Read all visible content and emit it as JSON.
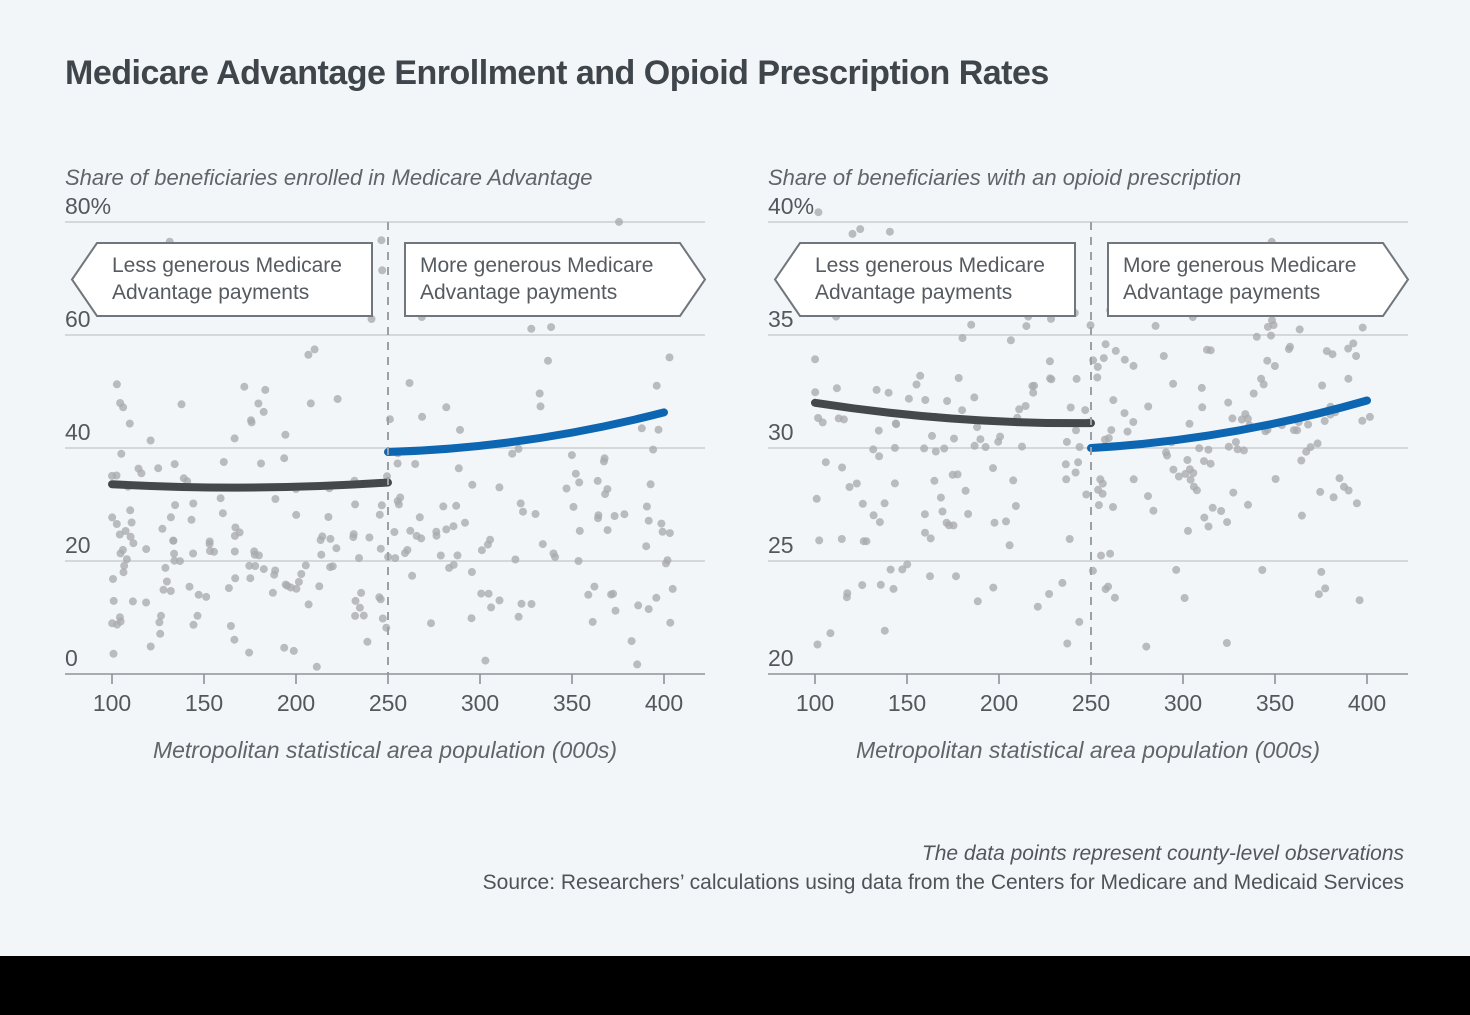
{
  "page": {
    "title": "Medicare Advantage Enrollment and Opioid Prescription Rates",
    "footnote_italic": "The data points represent county-level observations",
    "source_line": "Source: Researchers’ calculations using data from the Centers for Medicare and Medicaid Services",
    "colors": {
      "background": "#f3f6f9",
      "bottom_bar": "#000000",
      "accent_blue": "#0d66b1",
      "fit_dark": "#45484b",
      "dot_gray": "#a9abad",
      "gridline": "#c9cdd1",
      "axis": "#8e9397",
      "cutoff_dash": "#9aa0a6"
    }
  },
  "chart_data": [
    {
      "type": "scatter",
      "subtitle": "Share of beneficiaries enrolled in Medicare Advantage",
      "x_axis": {
        "label": "Metropolitan statistical area population (000s)",
        "ticks": [
          100,
          150,
          200,
          250,
          300,
          350,
          400
        ],
        "range": [
          100,
          400
        ]
      },
      "y_axis": {
        "tick_labels": [
          "80%",
          "60",
          "40",
          "20",
          "0"
        ],
        "tick_values": [
          80,
          60,
          40,
          20,
          0
        ],
        "range": [
          0,
          80
        ],
        "grid": true
      },
      "cutoff_x": 250,
      "annotations": {
        "less": [
          "Less generous Medicare",
          "Advantage payments"
        ],
        "more": [
          "More generous Medicare",
          "Advantage payments"
        ]
      },
      "fit_below": {
        "x": [
          100,
          175,
          250
        ],
        "y": [
          33.6,
          33.0,
          33.9
        ],
        "color": "#45484b"
      },
      "fit_above": {
        "x": [
          250,
          325,
          400
        ],
        "y": [
          39.3,
          41.4,
          46.3
        ],
        "color": "#0d66b1"
      },
      "scatter": {
        "seed": 42,
        "count": 270,
        "x_range": [
          100,
          406
        ],
        "x_pow": 1.4,
        "normal": {
          "mean": 24,
          "sd": 12
        },
        "mix_uniform": {
          "p": 0.13,
          "range": [
            30,
            83
          ]
        },
        "clip": [
          0.5,
          83
        ]
      }
    },
    {
      "type": "scatter",
      "subtitle": "Share of beneficiaries with an opioid prescription",
      "x_axis": {
        "label": "Metropolitan statistical area population (000s)",
        "ticks": [
          100,
          150,
          200,
          250,
          300,
          350,
          400
        ],
        "range": [
          100,
          400
        ]
      },
      "y_axis": {
        "tick_labels": [
          "40%",
          "35",
          "30",
          "25",
          "20"
        ],
        "tick_values": [
          40,
          35,
          30,
          25,
          20
        ],
        "range": [
          20,
          40
        ],
        "grid": true
      },
      "cutoff_x": 250,
      "annotations": {
        "less": [
          "Less generous Medicare",
          "Advantage payments"
        ],
        "more": [
          "More generous Medicare",
          "Advantage payments"
        ]
      },
      "fit_below": {
        "x": [
          100,
          175,
          250
        ],
        "y": [
          32.0,
          31.3,
          31.1
        ],
        "color": "#45484b"
      },
      "fit_above": {
        "x": [
          250,
          325,
          400
        ],
        "y": [
          30.0,
          30.7,
          32.1
        ],
        "color": "#0d66b1"
      },
      "scatter": {
        "seed": 7,
        "count": 270,
        "x_range": [
          100,
          406
        ],
        "x_pow": 1.15,
        "normal": {
          "mean": 30.4,
          "sd": 4.3
        },
        "clip": [
          19.7,
          41.3
        ]
      }
    }
  ]
}
